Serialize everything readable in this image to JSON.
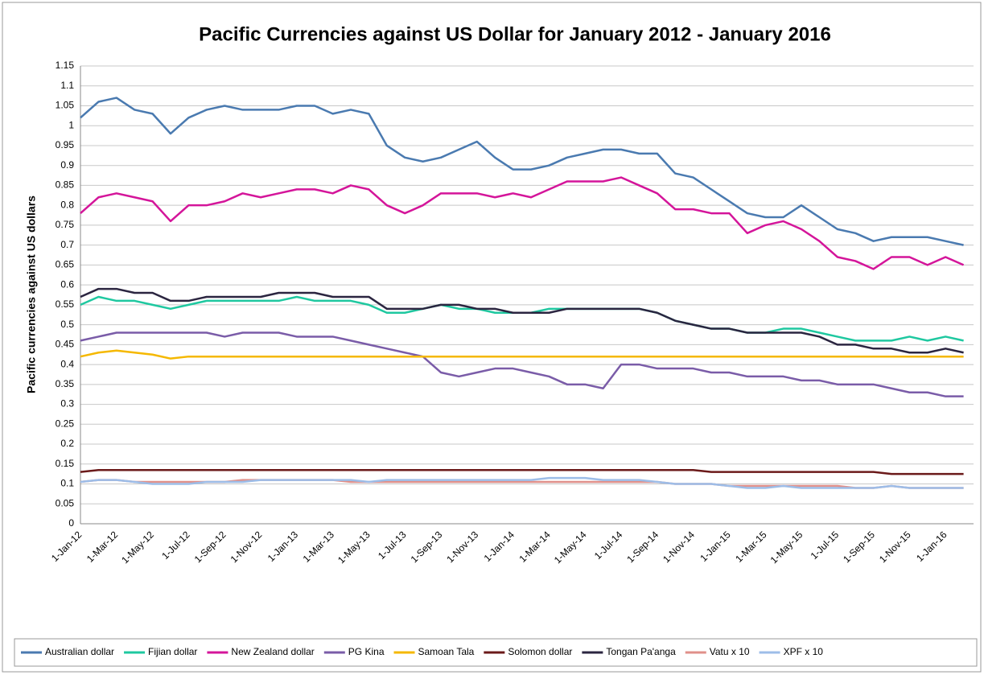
{
  "chart_data": {
    "type": "line",
    "title": "Pacific Currencies against US Dollar for January 2012 - January 2016",
    "y_label": "Pacific currencies against US dollars",
    "categories": [
      "1-Jan-12",
      null,
      "1-Mar-12",
      null,
      "1-May-12",
      null,
      "1-Jul-12",
      null,
      "1-Sep-12",
      null,
      "1-Nov-12",
      null,
      "1-Jan-13",
      null,
      "1-Mar-13",
      null,
      "1-May-13",
      null,
      "1-Jul-13",
      null,
      "1-Sep-13",
      null,
      "1-Nov-13",
      null,
      "1-Jan-14",
      null,
      "1-Mar-14",
      null,
      "1-May-14",
      null,
      "1-Jul-14",
      null,
      "1-Sep-14",
      null,
      "1-Nov-14",
      null,
      "1-Jan-15",
      null,
      "1-Mar-15",
      null,
      "1-May-15",
      null,
      "1-Jul-15",
      null,
      "1-Sep-15",
      null,
      "1-Nov-15",
      null,
      "1-Jan-16",
      null
    ],
    "ylim": [
      0,
      1.15
    ],
    "yticks": [
      0,
      0.05,
      0.1,
      0.15,
      0.2,
      0.25,
      0.3,
      0.35,
      0.4,
      0.45,
      0.5,
      0.55,
      0.6,
      0.65,
      0.7,
      0.75,
      0.8,
      0.85,
      0.9,
      0.95,
      1,
      1.05,
      1.1,
      1.15
    ],
    "grid": true,
    "legend": "bottom",
    "series": [
      {
        "name": "Australian dollar",
        "color": "#4a7ab0",
        "values": [
          1.02,
          1.06,
          1.07,
          1.04,
          1.03,
          0.98,
          1.02,
          1.04,
          1.05,
          1.04,
          1.04,
          1.04,
          1.05,
          1.05,
          1.03,
          1.04,
          1.03,
          0.95,
          0.92,
          0.91,
          0.92,
          0.94,
          0.96,
          0.92,
          0.89,
          0.89,
          0.9,
          0.92,
          0.93,
          0.94,
          0.94,
          0.93,
          0.93,
          0.88,
          0.87,
          0.84,
          0.81,
          0.78,
          0.77,
          0.77,
          0.8,
          0.77,
          0.74,
          0.73,
          0.71,
          0.72,
          0.72,
          0.72,
          0.71,
          0.7
        ]
      },
      {
        "name": "Fijian dollar",
        "color": "#1fc8a0",
        "values": [
          0.55,
          0.57,
          0.56,
          0.56,
          0.55,
          0.54,
          0.55,
          0.56,
          0.56,
          0.56,
          0.56,
          0.56,
          0.57,
          0.56,
          0.56,
          0.56,
          0.55,
          0.53,
          0.53,
          0.54,
          0.55,
          0.54,
          0.54,
          0.53,
          0.53,
          0.53,
          0.54,
          0.54,
          0.54,
          0.54,
          0.54,
          0.54,
          0.53,
          0.51,
          0.5,
          0.49,
          0.49,
          0.48,
          0.48,
          0.49,
          0.49,
          0.48,
          0.47,
          0.46,
          0.46,
          0.46,
          0.47,
          0.46,
          0.47,
          0.46
        ]
      },
      {
        "name": "New Zealand dollar",
        "color": "#d4159a",
        "values": [
          0.78,
          0.82,
          0.83,
          0.82,
          0.81,
          0.76,
          0.8,
          0.8,
          0.81,
          0.83,
          0.82,
          0.83,
          0.84,
          0.84,
          0.83,
          0.85,
          0.84,
          0.8,
          0.78,
          0.8,
          0.83,
          0.83,
          0.83,
          0.82,
          0.83,
          0.82,
          0.84,
          0.86,
          0.86,
          0.86,
          0.87,
          0.85,
          0.83,
          0.79,
          0.79,
          0.78,
          0.78,
          0.73,
          0.75,
          0.76,
          0.74,
          0.71,
          0.67,
          0.66,
          0.64,
          0.67,
          0.67,
          0.65,
          0.67,
          0.65
        ]
      },
      {
        "name": "PG Kina",
        "color": "#7a5ca8",
        "values": [
          0.46,
          0.47,
          0.48,
          0.48,
          0.48,
          0.48,
          0.48,
          0.48,
          0.47,
          0.48,
          0.48,
          0.48,
          0.47,
          0.47,
          0.47,
          0.46,
          0.45,
          0.44,
          0.43,
          0.42,
          0.38,
          0.37,
          0.38,
          0.39,
          0.39,
          0.38,
          0.37,
          0.35,
          0.35,
          0.34,
          0.4,
          0.4,
          0.39,
          0.39,
          0.39,
          0.38,
          0.38,
          0.37,
          0.37,
          0.37,
          0.36,
          0.36,
          0.35,
          0.35,
          0.35,
          0.34,
          0.33,
          0.33,
          0.32,
          0.32
        ]
      },
      {
        "name": "Samoan Tala",
        "color": "#f5b800",
        "values": [
          0.42,
          0.43,
          0.435,
          0.43,
          0.425,
          0.415,
          0.42,
          0.42,
          0.42,
          0.42,
          0.42,
          0.42,
          0.42,
          0.42,
          0.42,
          0.42,
          0.42,
          0.42,
          0.42,
          0.42,
          0.42,
          0.42,
          0.42,
          0.42,
          0.42,
          0.42,
          0.42,
          0.42,
          0.42,
          0.42,
          0.42,
          0.42,
          0.42,
          0.42,
          0.42,
          0.42,
          0.42,
          0.42,
          0.42,
          0.42,
          0.42,
          0.42,
          0.42,
          0.42,
          0.42,
          0.42,
          0.42,
          0.42,
          0.42,
          0.42
        ]
      },
      {
        "name": "Solomon dollar",
        "color": "#6b1a1a",
        "values": [
          0.13,
          0.135,
          0.135,
          0.135,
          0.135,
          0.135,
          0.135,
          0.135,
          0.135,
          0.135,
          0.135,
          0.135,
          0.135,
          0.135,
          0.135,
          0.135,
          0.135,
          0.135,
          0.135,
          0.135,
          0.135,
          0.135,
          0.135,
          0.135,
          0.135,
          0.135,
          0.135,
          0.135,
          0.135,
          0.135,
          0.135,
          0.135,
          0.135,
          0.135,
          0.135,
          0.13,
          0.13,
          0.13,
          0.13,
          0.13,
          0.13,
          0.13,
          0.13,
          0.13,
          0.13,
          0.125,
          0.125,
          0.125,
          0.125,
          0.125
        ]
      },
      {
        "name": "Tongan Pa'anga",
        "color": "#2b2540",
        "values": [
          0.57,
          0.59,
          0.59,
          0.58,
          0.58,
          0.56,
          0.56,
          0.57,
          0.57,
          0.57,
          0.57,
          0.58,
          0.58,
          0.58,
          0.57,
          0.57,
          0.57,
          0.54,
          0.54,
          0.54,
          0.55,
          0.55,
          0.54,
          0.54,
          0.53,
          0.53,
          0.53,
          0.54,
          0.54,
          0.54,
          0.54,
          0.54,
          0.53,
          0.51,
          0.5,
          0.49,
          0.49,
          0.48,
          0.48,
          0.48,
          0.48,
          0.47,
          0.45,
          0.45,
          0.44,
          0.44,
          0.43,
          0.43,
          0.44,
          0.43
        ]
      },
      {
        "name": "Vatu x 10",
        "color": "#e0908a",
        "values": [
          0.105,
          0.11,
          0.11,
          0.105,
          0.105,
          0.105,
          0.105,
          0.105,
          0.105,
          0.11,
          0.11,
          0.11,
          0.11,
          0.11,
          0.11,
          0.105,
          0.105,
          0.105,
          0.105,
          0.105,
          0.105,
          0.105,
          0.105,
          0.105,
          0.105,
          0.105,
          0.105,
          0.105,
          0.105,
          0.105,
          0.105,
          0.105,
          0.105,
          0.1,
          0.1,
          0.1,
          0.095,
          0.095,
          0.095,
          0.095,
          0.095,
          0.095,
          0.095,
          0.09,
          0.09,
          0.095,
          0.09,
          0.09,
          0.09,
          0.09
        ]
      },
      {
        "name": "XPF x 10",
        "color": "#9dbde8",
        "values": [
          0.105,
          0.11,
          0.11,
          0.105,
          0.1,
          0.1,
          0.1,
          0.105,
          0.105,
          0.105,
          0.11,
          0.11,
          0.11,
          0.11,
          0.11,
          0.11,
          0.105,
          0.11,
          0.11,
          0.11,
          0.11,
          0.11,
          0.11,
          0.11,
          0.11,
          0.11,
          0.115,
          0.115,
          0.115,
          0.11,
          0.11,
          0.11,
          0.105,
          0.1,
          0.1,
          0.1,
          0.095,
          0.09,
          0.09,
          0.095,
          0.09,
          0.09,
          0.09,
          0.09,
          0.09,
          0.095,
          0.09,
          0.09,
          0.09,
          0.09
        ]
      }
    ]
  }
}
